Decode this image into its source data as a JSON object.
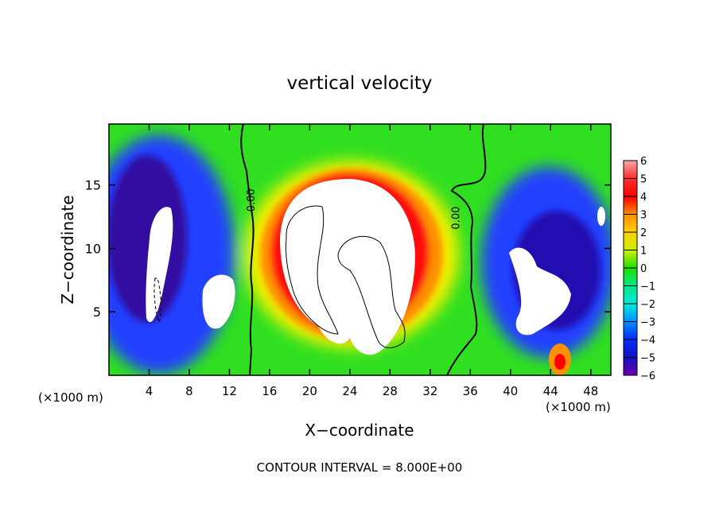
{
  "chart_data": {
    "type": "heatmap",
    "title": "vertical velocity",
    "xlabel": "X−coordinate",
    "ylabel": "Z−coordinate",
    "x_unit_left": "(×1000 m)",
    "x_unit_right": "(×1000 m)",
    "footer": "CONTOUR INTERVAL = 8.000E+00",
    "xlim": [
      0,
      50
    ],
    "ylim": [
      0,
      19.8
    ],
    "x_ticks": [
      4,
      8,
      12,
      16,
      20,
      24,
      28,
      32,
      36,
      40,
      44,
      48
    ],
    "x_tick_labels": [
      "4",
      "8",
      "12",
      "16",
      "20",
      "24",
      "28",
      "32",
      "36",
      "40",
      "44",
      "48"
    ],
    "y_ticks": [
      5,
      10,
      15
    ],
    "y_tick_labels": [
      "5",
      "10",
      "15"
    ],
    "colorbar": {
      "min": -6,
      "max": 6,
      "tick_values": [
        6,
        5,
        4,
        3,
        2,
        1,
        0,
        -1,
        -2,
        -3,
        -4,
        -5,
        -6
      ],
      "tick_labels": [
        "6",
        "5",
        "4",
        "3",
        "2",
        "1",
        "0",
        "−1",
        "−2",
        "−3",
        "−4",
        "−5",
        "−6"
      ]
    },
    "contour_labels": [
      {
        "text": "0.00",
        "x": 14.2,
        "z": 13.8
      },
      {
        "text": "0.00",
        "x": 34.6,
        "z": 12.4
      }
    ],
    "features": [
      {
        "kind": "updraft",
        "x": 24.5,
        "z": 10,
        "w": 8
      },
      {
        "kind": "downdraft",
        "x": 5,
        "z": 10,
        "w": -6
      },
      {
        "kind": "downdraft",
        "x": 44,
        "z": 10,
        "w": -6
      },
      {
        "kind": "updraft",
        "x": 45,
        "z": 1,
        "w": 4
      }
    ]
  }
}
